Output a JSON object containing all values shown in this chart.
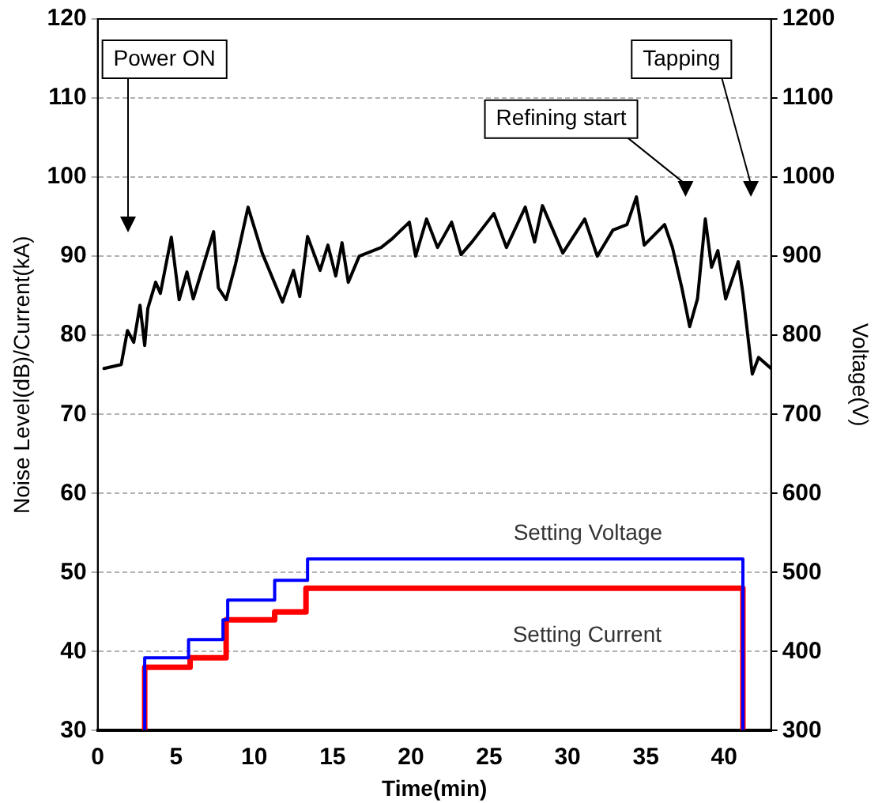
{
  "chart_data": {
    "type": "line",
    "xlabel": "Time(min)",
    "ylabel": "Noise Level(dB)/Current(kA)",
    "y2label": "Voltage(V)",
    "xlim": [
      0,
      43
    ],
    "xticks": [
      0,
      5,
      10,
      15,
      20,
      25,
      30,
      35,
      40
    ],
    "ylim": [
      30,
      120
    ],
    "yticks": [
      30,
      40,
      50,
      60,
      70,
      80,
      90,
      100,
      110,
      120
    ],
    "y2lim": [
      300,
      1200
    ],
    "y2ticks": [
      300,
      400,
      500,
      600,
      700,
      800,
      900,
      1000,
      1100,
      1200
    ],
    "grid": "y",
    "legend": false,
    "marker": "none",
    "line_style": "solid",
    "series": [
      {
        "color": "#000000",
        "x": [
          0.4,
          1.5,
          1.9,
          2.3,
          2.7,
          3.0,
          3.2,
          3.7,
          4.0,
          4.7,
          5.2,
          5.7,
          6.1,
          7.4,
          7.7,
          8.2,
          8.8,
          9.6,
          10.5,
          11.8,
          12.5,
          12.9,
          13.4,
          14.2,
          14.7,
          15.2,
          15.6,
          16.0,
          16.7,
          18.1,
          18.8,
          19.9,
          20.3,
          21.0,
          21.7,
          22.6,
          23.2,
          23.9,
          25.3,
          26.1,
          27.3,
          27.9,
          28.4,
          29.7,
          31.1,
          31.9,
          32.9,
          33.8,
          34.4,
          34.9,
          36.2,
          36.7,
          37.3,
          37.8,
          38.3,
          38.8,
          39.2,
          39.6,
          40.1,
          40.9,
          41.2,
          41.8,
          42.2,
          43.0
        ],
        "values": [
          75.8,
          76.3,
          80.6,
          79.1,
          83.8,
          78.7,
          83.4,
          86.7,
          85.3,
          92.4,
          84.5,
          88.0,
          84.6,
          93.1,
          86.0,
          84.5,
          89.0,
          96.2,
          90.4,
          84.2,
          88.2,
          84.9,
          92.5,
          88.2,
          91.4,
          87.5,
          91.7,
          86.7,
          90.0,
          91.1,
          92.2,
          94.3,
          90.0,
          94.7,
          91.1,
          94.3,
          90.2,
          91.8,
          95.4,
          91.1,
          96.2,
          91.8,
          96.4,
          90.4,
          94.7,
          90.0,
          93.3,
          94.0,
          97.5,
          91.4,
          94.0,
          91.1,
          86.0,
          81.1,
          84.6,
          94.7,
          88.6,
          90.7,
          84.6,
          89.3,
          85.3,
          75.1,
          77.2,
          75.8
        ]
      },
      {
        "type": "step",
        "name": "Setting Voltage",
        "axis": "y2",
        "color": "#0000ff",
        "x": [
          3,
          3,
          5.8,
          8.0,
          8.3,
          11.3,
          13.4,
          41.2
        ],
        "values": [
          300,
          392,
          415,
          440,
          465,
          490,
          517,
          300
        ]
      },
      {
        "type": "step",
        "name": "Setting Current",
        "color": "#ff0000",
        "x": [
          3,
          3,
          5.9,
          8.2,
          11.3,
          13.3,
          41.2
        ],
        "values": [
          30,
          38,
          39.2,
          44,
          45,
          48,
          30
        ]
      }
    ],
    "annotations": [
      "Power ON",
      "Refining start",
      "Tapping"
    ]
  }
}
